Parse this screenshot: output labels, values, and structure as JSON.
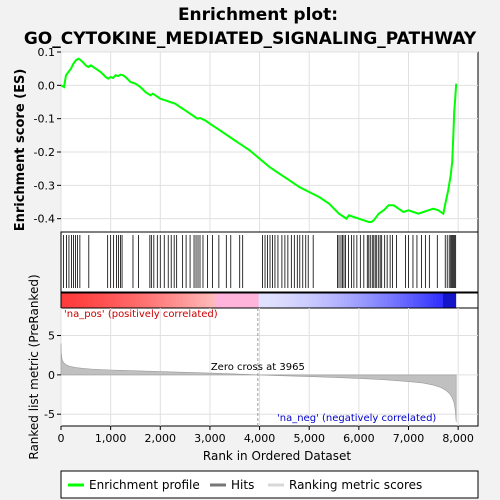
{
  "chart_data": {
    "type": "line",
    "title_line1": "Enrichment plot:",
    "title_line2": "GO_CYTOKINE_MEDIATED_SIGNALING_PATHWAY",
    "xlabel": "Rank in Ordered Dataset",
    "ylabel_top": "Enrichment score (ES)",
    "ylabel_bottom": "Ranked list metric (PreRanked)",
    "xlim": [
      0,
      8400
    ],
    "x_ticks": [
      "0",
      "1,000",
      "2,000",
      "3,000",
      "4,000",
      "5,000",
      "6,000",
      "7,000",
      "8,000"
    ],
    "x_tick_values": [
      0,
      1000,
      2000,
      3000,
      4000,
      5000,
      6000,
      7000,
      8000
    ],
    "es_ylim": [
      -0.44,
      0.1
    ],
    "es_ticks": [
      "0.1",
      "0.0",
      "-0.1",
      "-0.2",
      "-0.3",
      "-0.4"
    ],
    "es_tick_values": [
      0.1,
      0.0,
      -0.1,
      -0.2,
      -0.3,
      -0.4
    ],
    "metric_ylim": [
      -6.5,
      8.5
    ],
    "metric_ticks": [
      "5",
      "0",
      "-5"
    ],
    "metric_tick_values": [
      5,
      0,
      -5
    ],
    "enrichment_profile": {
      "name": "Enrichment profile",
      "color": "#00ff00",
      "x": [
        0,
        60,
        100,
        150,
        200,
        250,
        300,
        350,
        400,
        450,
        500,
        550,
        600,
        700,
        800,
        900,
        950,
        1000,
        1050,
        1100,
        1150,
        1200,
        1250,
        1300,
        1400,
        1500,
        1600,
        1700,
        1800,
        1850,
        1900,
        2000,
        2100,
        2200,
        2300,
        2400,
        2500,
        2600,
        2700,
        2750,
        2800,
        2900,
        3000,
        3200,
        3400,
        3600,
        3800,
        4000,
        4200,
        4400,
        4600,
        4800,
        5000,
        5200,
        5400,
        5500,
        5600,
        5700,
        5750,
        5800,
        5900,
        6000,
        6100,
        6200,
        6250,
        6300,
        6400,
        6500,
        6600,
        6700,
        6800,
        6900,
        7000,
        7100,
        7200,
        7300,
        7400,
        7500,
        7600,
        7700,
        7750,
        7800,
        7850,
        7880,
        7900,
        7920,
        7940,
        7960
      ],
      "y": [
        0.0,
        -0.005,
        0.03,
        0.04,
        0.05,
        0.065,
        0.075,
        0.08,
        0.075,
        0.068,
        0.06,
        0.055,
        0.06,
        0.05,
        0.04,
        0.025,
        0.02,
        0.025,
        0.022,
        0.03,
        0.028,
        0.032,
        0.03,
        0.025,
        0.01,
        0.005,
        -0.005,
        -0.02,
        -0.03,
        -0.025,
        -0.03,
        -0.04,
        -0.045,
        -0.05,
        -0.055,
        -0.065,
        -0.075,
        -0.085,
        -0.095,
        -0.1,
        -0.098,
        -0.105,
        -0.115,
        -0.135,
        -0.155,
        -0.175,
        -0.195,
        -0.22,
        -0.245,
        -0.265,
        -0.285,
        -0.305,
        -0.32,
        -0.335,
        -0.355,
        -0.37,
        -0.385,
        -0.395,
        -0.4,
        -0.39,
        -0.395,
        -0.4,
        -0.405,
        -0.41,
        -0.41,
        -0.405,
        -0.385,
        -0.375,
        -0.36,
        -0.36,
        -0.37,
        -0.38,
        -0.375,
        -0.38,
        -0.385,
        -0.38,
        -0.375,
        -0.37,
        -0.375,
        -0.385,
        -0.35,
        -0.315,
        -0.27,
        -0.23,
        -0.16,
        -0.08,
        -0.04,
        0.005
      ]
    },
    "hits_x": [
      50,
      110,
      160,
      210,
      250,
      290,
      330,
      380,
      560,
      940,
      1000,
      1060,
      1120,
      1160,
      1200,
      1230,
      1450,
      1560,
      1790,
      1820,
      1870,
      1940,
      2000,
      2080,
      2160,
      2220,
      2280,
      2330,
      2450,
      2520,
      2600,
      2680,
      2720,
      2760,
      2800,
      2860,
      2950,
      3050,
      3180,
      3330,
      3420,
      3600,
      3660,
      4060,
      4110,
      4160,
      4210,
      4260,
      4310,
      4370,
      4450,
      4510,
      4570,
      4640,
      4700,
      4760,
      4810,
      4870,
      4930,
      4980,
      5080,
      5570,
      5600,
      5640,
      5670,
      5700,
      5730,
      5790,
      5850,
      5900,
      5960,
      6030,
      6100,
      6170,
      6200,
      6230,
      6270,
      6300,
      6330,
      6360,
      6400,
      6430,
      6460,
      6520,
      6570,
      6630,
      6680,
      6760,
      6940,
      7000,
      7090,
      7170,
      7260,
      7340,
      7420,
      7580,
      7740,
      7780,
      7820,
      7850,
      7870,
      7890,
      7910,
      7930,
      7950
    ],
    "zero_cross_label": "Zero cross at 3965",
    "zero_cross_x": 3965,
    "pos_label": "'na_pos' (positively correlated)",
    "neg_label": "'na_neg' (negatively correlated)",
    "n_genes": 7960,
    "metric_curve": {
      "x": [
        0,
        5,
        15,
        30,
        60,
        100,
        150,
        200,
        300,
        450,
        600,
        800,
        1000,
        1500,
        2000,
        2500,
        3000,
        3500,
        3965,
        4500,
        5000,
        5500,
        6000,
        6500,
        7000,
        7300,
        7500,
        7650,
        7750,
        7830,
        7880,
        7920,
        7945,
        7960
      ],
      "y": [
        4.0,
        2.9,
        2.2,
        1.8,
        1.5,
        1.3,
        1.15,
        1.05,
        0.92,
        0.82,
        0.75,
        0.68,
        0.62,
        0.52,
        0.42,
        0.32,
        0.22,
        0.12,
        0.0,
        -0.12,
        -0.22,
        -0.32,
        -0.45,
        -0.62,
        -0.85,
        -1.05,
        -1.3,
        -1.6,
        -1.95,
        -2.4,
        -2.9,
        -3.6,
        -4.6,
        -6.0
      ]
    },
    "legend": {
      "profile": "Enrichment profile",
      "hits": "Hits",
      "scores": "Ranking metric scores"
    },
    "colors": {
      "profile": "#00ff00",
      "hits": "#000000",
      "pos_text": "#cc0000",
      "neg_text": "#0000cc",
      "metric_fill": "#c0c0c0",
      "grid": "#e0e0e0"
    }
  }
}
